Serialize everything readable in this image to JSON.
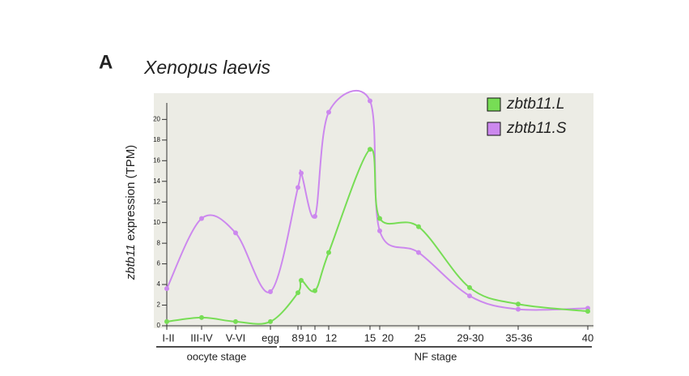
{
  "panel_label": "A",
  "chart_data": {
    "type": "line",
    "title": "Xenopus laevis",
    "y_label": "zbtb11 expression (TPM)",
    "categories": [
      "I-II",
      "III-IV",
      "V-VI",
      "egg",
      "8",
      "9",
      "10",
      "12",
      "15",
      "20",
      "25",
      "29-30",
      "35-36",
      "40"
    ],
    "groups": [
      "oocyte stage",
      "NF stage"
    ],
    "series": [
      {
        "name": "zbtb11.L",
        "color": "#77dd55",
        "values": [
          0.4,
          0.8,
          0.4,
          0.4,
          3.2,
          4.4,
          3.4,
          7.1,
          17.1,
          10.4,
          9.6,
          3.7,
          2.1,
          1.4
        ]
      },
      {
        "name": "zbtb11.S",
        "color": "#cc88ee",
        "values": [
          3.6,
          10.4,
          9.0,
          3.3,
          13.4,
          14.8,
          10.6,
          20.7,
          21.8,
          9.2,
          7.1,
          2.9,
          1.6,
          1.7
        ]
      }
    ],
    "ylim": [
      0,
      21.6
    ],
    "yticks": [
      0,
      2,
      4,
      6,
      8,
      10,
      12,
      14,
      16,
      18,
      20
    ],
    "legend": "upper right"
  }
}
